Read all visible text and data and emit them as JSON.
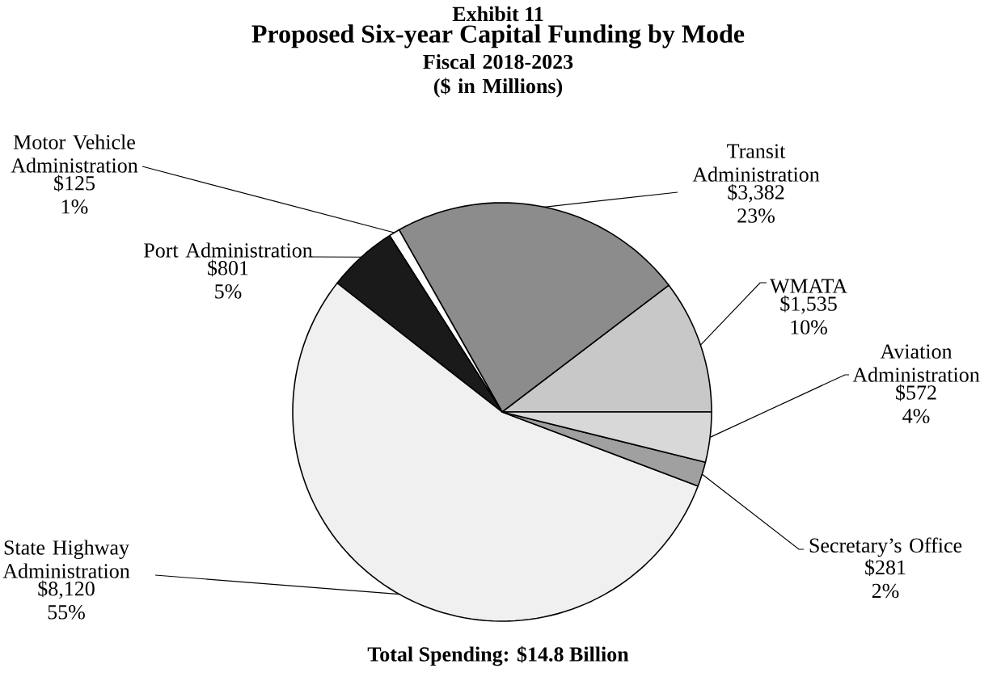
{
  "chart_data": {
    "type": "pie",
    "title": "Proposed Six-year Capital Funding by Mode",
    "subtitle": "Fiscal 2018-2023 ($ in Millions)",
    "categories": [
      "WMATA",
      "Transit Administration",
      "Motor Vehicle Administration",
      "Port Administration",
      "State Highway Administration",
      "Secretary’s Office",
      "Aviation Administration"
    ],
    "values": [
      1535,
      3382,
      125,
      801,
      8120,
      281,
      572
    ],
    "value_labels": [
      "$1,535 10%",
      "$3,382 23%",
      "$125 1%",
      "$801 5%",
      "$8,120 55%",
      "$281 2%",
      "$572 4%"
    ],
    "colors": [
      "#c8c8c8",
      "#8c8c8c",
      "#ffffff",
      "#1a1a1a",
      "#f0f0f0",
      "#a0a0a0",
      "#d8d8d8"
    ],
    "annotations": [
      "Exhibit 11",
      "Total Spending: $14.8 Billion"
    ]
  }
}
